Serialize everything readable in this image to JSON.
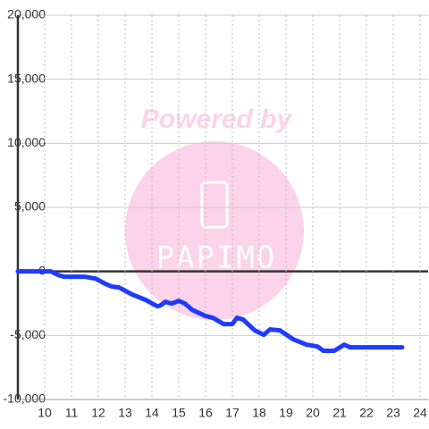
{
  "chart_data": {
    "type": "line",
    "watermark": "Powered by",
    "logo": "PAPIMO",
    "x": [
      9,
      10.23,
      10.5,
      10.73,
      11.5,
      11.9,
      12.27,
      12.5,
      12.77,
      13.27,
      13.77,
      14.2,
      14.33,
      14.5,
      14.73,
      15,
      15.23,
      15.5,
      16,
      16.27,
      16.67,
      17,
      17.17,
      17.4,
      17.83,
      18.17,
      18.4,
      18.77,
      19.27,
      19.77,
      20.17,
      20.4,
      20.8,
      21.17,
      21.4,
      23.33
    ],
    "series": [
      {
        "color": "#1f3bff",
        "values": [
          0,
          0,
          -280,
          -420,
          -420,
          -560,
          -980,
          -1180,
          -1250,
          -1810,
          -2230,
          -2720,
          -2650,
          -2370,
          -2510,
          -2300,
          -2510,
          -3000,
          -3480,
          -3620,
          -4110,
          -4110,
          -3620,
          -3760,
          -4600,
          -4950,
          -4530,
          -4600,
          -5300,
          -5720,
          -5860,
          -6200,
          -6200,
          -5720,
          -5930,
          -5930
        ]
      }
    ],
    "xlim": [
      9,
      24.3
    ],
    "xticks": [
      10,
      11,
      12,
      13,
      14,
      15,
      16,
      17,
      18,
      19,
      20,
      21,
      22,
      23,
      24
    ],
    "ylim": [
      -10000,
      20000
    ],
    "yticks": [
      {
        "value": -10000,
        "label": "-10,000"
      },
      {
        "value": -5000,
        "label": "-5,000"
      },
      0,
      {
        "value": 5000,
        "label": "5,000"
      },
      {
        "value": 10000,
        "label": "10,000"
      },
      {
        "value": 15000,
        "label": "15,000"
      },
      {
        "value": 20000,
        "label": "20,000"
      }
    ],
    "grid": true
  }
}
